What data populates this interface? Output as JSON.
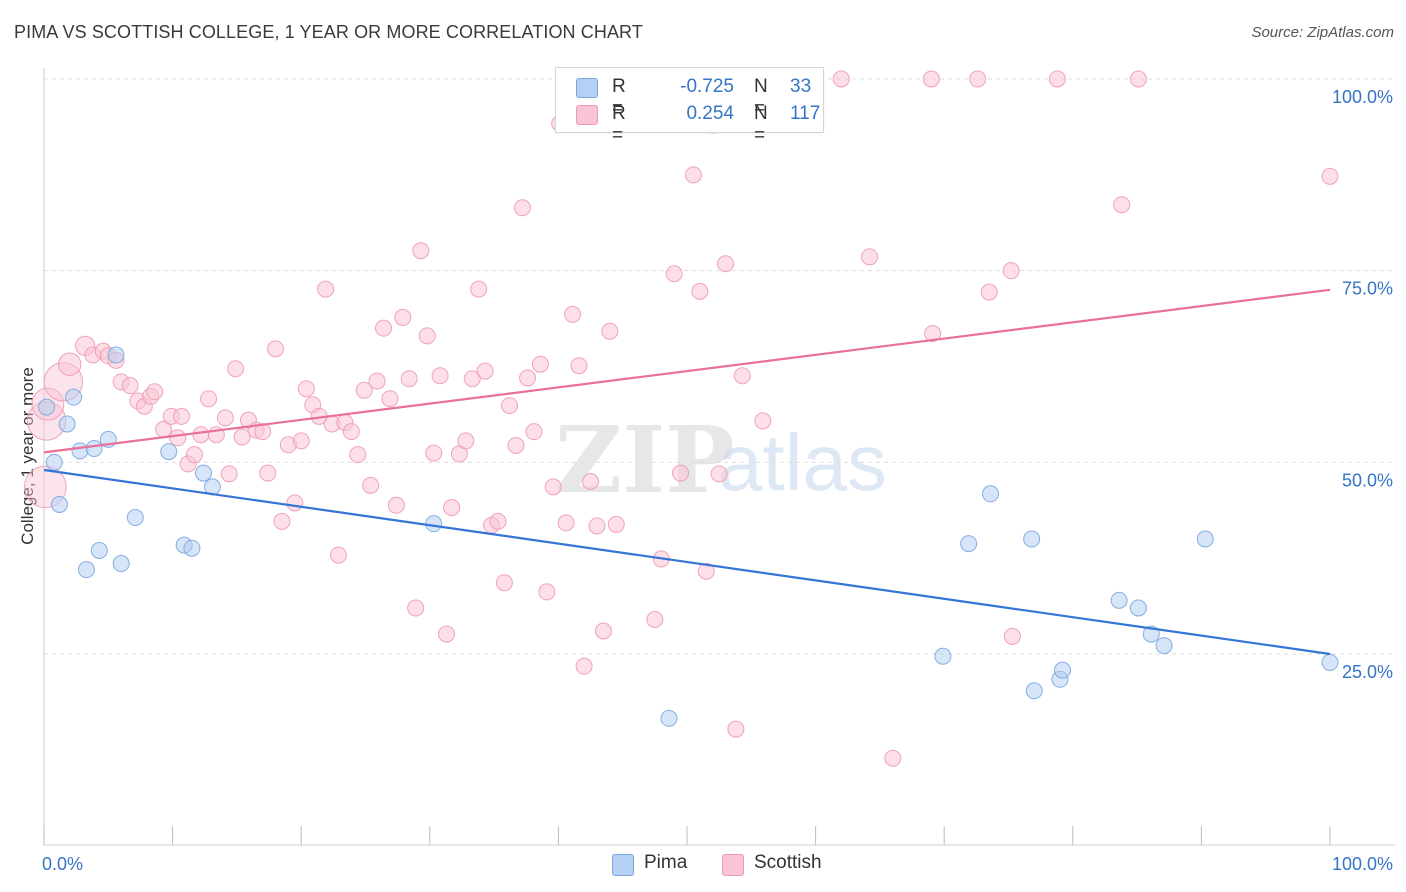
{
  "header": {
    "title": "PIMA VS SCOTTISH COLLEGE, 1 YEAR OR MORE CORRELATION CHART",
    "source": "Source: ZipAtlas.com"
  },
  "legend": {
    "rows": [
      {
        "label": "R =",
        "r": "-0.725",
        "n_label": "N =",
        "n": "33"
      },
      {
        "label": "R =",
        "r": "0.254",
        "n_label": "N =",
        "n": "117"
      }
    ],
    "series": [
      "Pima",
      "Scottish"
    ]
  },
  "watermark": {
    "zip": "ZIP",
    "atlas": "atlas"
  },
  "colors": {
    "pima_fill": "#b6d0f3",
    "pima_stroke": "#7aa6e0",
    "pima_line": "#3575d6",
    "scottish_fill": "#f9c4d4",
    "scottish_stroke": "#ee9ab5",
    "scottish_line": "#e8709a",
    "tick_text": "#3575c7",
    "grid": "#dddddd"
  },
  "chart_data": {
    "type": "scatter",
    "title": "PIMA VS SCOTTISH COLLEGE, 1 YEAR OR MORE CORRELATION CHART",
    "xlabel": "",
    "ylabel": "College, 1 year or more",
    "xlim": [
      0,
      100
    ],
    "ylim": [
      0,
      103
    ],
    "x_tick_labels": [
      "0.0%",
      "100.0%"
    ],
    "y_ticks": [
      25,
      50,
      75,
      100
    ],
    "y_tick_labels": [
      "25.0%",
      "50.0%",
      "75.0%",
      "100.0%"
    ],
    "grid": "horizontal dashed",
    "legend_position": "top-center",
    "series": [
      {
        "name": "Pima",
        "r": -0.725,
        "n": 33,
        "trend": [
          [
            0,
            49.0
          ],
          [
            100,
            25.0
          ]
        ],
        "points": [
          [
            0.2,
            57.2,
            1
          ],
          [
            0.8,
            50.0,
            1
          ],
          [
            1.2,
            44.5,
            1
          ],
          [
            1.8,
            55.0,
            1
          ],
          [
            2.3,
            58.5,
            1
          ],
          [
            2.8,
            51.5,
            1
          ],
          [
            3.3,
            36.0,
            1
          ],
          [
            3.9,
            51.8,
            1
          ],
          [
            4.3,
            38.5,
            1
          ],
          [
            5.0,
            53.0,
            1
          ],
          [
            5.6,
            64.0,
            1
          ],
          [
            6.0,
            36.8,
            1
          ],
          [
            7.1,
            42.8,
            1
          ],
          [
            9.7,
            51.4,
            1
          ],
          [
            10.9,
            39.2,
            1
          ],
          [
            11.5,
            38.8,
            1
          ],
          [
            12.4,
            48.6,
            1
          ],
          [
            13.1,
            46.8,
            1
          ],
          [
            30.3,
            42.0,
            1
          ],
          [
            48.6,
            16.6,
            1
          ],
          [
            69.9,
            24.7,
            1
          ],
          [
            71.9,
            39.4,
            1
          ],
          [
            73.6,
            45.9,
            1
          ],
          [
            76.8,
            40.0,
            1
          ],
          [
            77.0,
            20.2,
            1
          ],
          [
            79.0,
            21.7,
            1
          ],
          [
            79.2,
            22.9,
            1
          ],
          [
            83.6,
            32.0,
            1
          ],
          [
            85.1,
            31.0,
            1
          ],
          [
            86.1,
            27.6,
            1
          ],
          [
            87.1,
            26.1,
            1
          ],
          [
            90.3,
            40.0,
            1
          ],
          [
            100.0,
            23.9,
            1
          ]
        ]
      },
      {
        "name": "Scottish",
        "r": 0.254,
        "n": 117,
        "trend": [
          [
            0,
            51.3
          ],
          [
            100,
            72.5
          ]
        ],
        "points": [
          [
            0.1,
            46.8,
            2.6
          ],
          [
            0.2,
            55.4,
            2.4
          ],
          [
            0.3,
            57.6,
            2.0
          ],
          [
            1.5,
            60.5,
            2.4
          ],
          [
            2.0,
            62.8,
            1.4
          ],
          [
            3.2,
            65.2,
            1.2
          ],
          [
            3.8,
            64.0,
            1.0
          ],
          [
            4.6,
            64.5,
            1.0
          ],
          [
            5.0,
            63.9,
            1.0
          ],
          [
            5.6,
            63.3,
            1.0
          ],
          [
            6.0,
            60.5,
            1
          ],
          [
            6.7,
            60.0,
            1
          ],
          [
            7.3,
            58.0,
            1
          ],
          [
            7.8,
            57.3,
            1
          ],
          [
            8.3,
            58.6,
            1
          ],
          [
            8.6,
            59.2,
            1
          ],
          [
            9.3,
            54.3,
            1
          ],
          [
            9.9,
            56.0,
            1
          ],
          [
            10.4,
            53.2,
            1
          ],
          [
            10.7,
            56.0,
            1
          ],
          [
            11.2,
            49.8,
            1
          ],
          [
            11.7,
            51.0,
            1
          ],
          [
            12.2,
            53.6,
            1
          ],
          [
            12.8,
            58.3,
            1
          ],
          [
            13.4,
            53.6,
            1
          ],
          [
            14.1,
            55.8,
            1
          ],
          [
            14.4,
            48.5,
            1
          ],
          [
            14.9,
            62.2,
            1
          ],
          [
            15.4,
            53.3,
            1
          ],
          [
            15.9,
            55.5,
            1
          ],
          [
            16.5,
            54.2,
            1
          ],
          [
            17.0,
            54.0,
            1
          ],
          [
            17.4,
            48.6,
            1
          ],
          [
            18.0,
            64.8,
            1
          ],
          [
            18.5,
            42.3,
            1
          ],
          [
            19.0,
            52.3,
            1
          ],
          [
            19.5,
            44.7,
            1
          ],
          [
            20.0,
            52.8,
            1
          ],
          [
            20.4,
            59.6,
            1
          ],
          [
            20.9,
            57.5,
            1
          ],
          [
            21.4,
            56.0,
            1
          ],
          [
            21.9,
            72.6,
            1
          ],
          [
            22.4,
            55.0,
            1
          ],
          [
            22.9,
            37.9,
            1
          ],
          [
            23.4,
            55.2,
            1
          ],
          [
            23.9,
            54.0,
            1
          ],
          [
            24.4,
            51.0,
            1
          ],
          [
            24.9,
            59.4,
            1
          ],
          [
            25.4,
            47.0,
            1
          ],
          [
            25.9,
            60.6,
            1
          ],
          [
            26.4,
            67.5,
            1
          ],
          [
            26.9,
            58.3,
            1
          ],
          [
            27.4,
            44.4,
            1
          ],
          [
            27.9,
            68.9,
            1
          ],
          [
            28.4,
            60.9,
            1
          ],
          [
            28.9,
            31.0,
            1
          ],
          [
            29.3,
            77.6,
            1
          ],
          [
            29.8,
            66.5,
            1
          ],
          [
            30.3,
            51.2,
            1
          ],
          [
            30.8,
            61.3,
            1
          ],
          [
            31.3,
            27.6,
            1
          ],
          [
            31.7,
            44.1,
            1
          ],
          [
            32.3,
            51.1,
            1
          ],
          [
            32.8,
            52.8,
            1
          ],
          [
            33.3,
            60.9,
            1
          ],
          [
            33.8,
            72.6,
            1
          ],
          [
            34.3,
            61.9,
            1
          ],
          [
            34.8,
            41.8,
            1
          ],
          [
            35.3,
            42.3,
            1
          ],
          [
            35.8,
            34.3,
            1
          ],
          [
            36.2,
            57.4,
            1
          ],
          [
            36.7,
            52.2,
            1
          ],
          [
            37.2,
            83.2,
            1
          ],
          [
            37.6,
            61.0,
            1
          ],
          [
            38.1,
            54.0,
            1
          ],
          [
            38.6,
            62.8,
            1
          ],
          [
            39.1,
            33.1,
            1
          ],
          [
            39.6,
            46.8,
            1
          ],
          [
            40.1,
            94.2,
            1
          ],
          [
            40.6,
            42.1,
            1
          ],
          [
            41.1,
            69.3,
            1
          ],
          [
            41.6,
            62.6,
            1
          ],
          [
            42.0,
            23.4,
            1
          ],
          [
            42.5,
            47.5,
            1
          ],
          [
            43.0,
            41.7,
            1
          ],
          [
            43.5,
            28.0,
            1
          ],
          [
            44.0,
            67.1,
            1
          ],
          [
            44.5,
            41.9,
            1
          ],
          [
            47.5,
            29.5,
            1
          ],
          [
            48.0,
            37.4,
            1
          ],
          [
            48.5,
            97.0,
            1
          ],
          [
            49.0,
            74.6,
            1
          ],
          [
            49.5,
            48.6,
            1
          ],
          [
            50.0,
            98.4,
            1
          ],
          [
            50.5,
            87.5,
            1
          ],
          [
            51.0,
            72.3,
            1
          ],
          [
            51.5,
            35.8,
            1
          ],
          [
            52.0,
            94.0,
            1
          ],
          [
            52.5,
            48.5,
            1
          ],
          [
            53.0,
            75.9,
            1
          ],
          [
            53.8,
            15.2,
            1
          ],
          [
            54.3,
            61.3,
            1
          ],
          [
            55.9,
            55.4,
            1
          ],
          [
            58.7,
            100.0,
            1
          ],
          [
            59.1,
            99.8,
            1
          ],
          [
            62.0,
            100.0,
            1
          ],
          [
            64.2,
            76.8,
            1
          ],
          [
            66.0,
            11.4,
            1
          ],
          [
            69.0,
            100.0,
            1
          ],
          [
            69.1,
            66.8,
            1
          ],
          [
            72.6,
            100.0,
            1
          ],
          [
            75.3,
            27.3,
            1
          ],
          [
            73.5,
            72.2,
            1
          ],
          [
            75.2,
            75.0,
            1
          ],
          [
            78.8,
            100.0,
            1
          ],
          [
            83.8,
            83.6,
            1
          ],
          [
            85.1,
            100.0,
            1
          ],
          [
            100.0,
            87.3,
            1
          ]
        ]
      }
    ]
  }
}
